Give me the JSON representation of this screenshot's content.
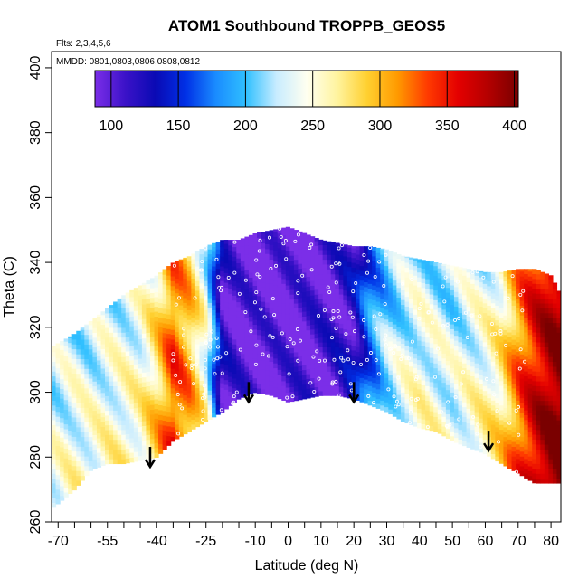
{
  "chart_data": {
    "type": "heatmap",
    "title": "ATOM1 Southbound TROPPB_GEOS5",
    "flights_note": "Flts: 2,3,4,5,6",
    "dates_note": "MMDD: 0801,0803,0806,0808,0812",
    "xlabel": "Latitude (deg N)",
    "ylabel": "Theta (C)",
    "xlim": [
      -72,
      83
    ],
    "ylim": [
      260,
      405
    ],
    "x_ticks": [
      -70,
      -55,
      -40,
      -25,
      -10,
      0,
      10,
      20,
      30,
      40,
      50,
      60,
      70,
      80
    ],
    "x_tick_labels": [
      "-70",
      "-55",
      "-40",
      "-25",
      "-10",
      "0",
      "10",
      "20",
      "30",
      "40",
      "50",
      "60",
      "70",
      "80"
    ],
    "y_ticks": [
      260,
      280,
      300,
      320,
      340,
      360,
      380,
      400
    ],
    "y_tick_labels": [
      "260",
      "280",
      "300",
      "320",
      "340",
      "360",
      "380",
      "400"
    ],
    "colorbar": {
      "min": 88,
      "max": 403,
      "ticks": [
        100,
        150,
        200,
        250,
        300,
        350,
        400
      ],
      "tick_labels": [
        "100",
        "150",
        "200",
        "250",
        "300",
        "350",
        "400"
      ],
      "colors": [
        "#7b2ee8",
        "#3b12c8",
        "#0a0ab4",
        "#0030e6",
        "#1a8cff",
        "#30c0ff",
        "#c8ecff",
        "#fffff0",
        "#fff4a0",
        "#ffd030",
        "#ff9a00",
        "#ff3a00",
        "#e40000",
        "#b40000",
        "#7a0000"
      ]
    },
    "field": {
      "lat_grid": [
        -72,
        -65,
        -60,
        -55,
        -50,
        -45,
        -40,
        -35,
        -30,
        -25,
        -20,
        -15,
        -10,
        -5,
        0,
        5,
        10,
        15,
        20,
        25,
        30,
        35,
        40,
        45,
        50,
        55,
        60,
        65,
        70,
        75,
        80,
        83
      ],
      "tropopause_pressure_hPa": [
        235,
        240,
        238,
        242,
        245,
        250,
        280,
        330,
        300,
        240,
        110,
        95,
        92,
        90,
        92,
        95,
        100,
        105,
        120,
        175,
        210,
        230,
        240,
        235,
        230,
        240,
        250,
        270,
        320,
        360,
        390,
        400
      ],
      "theta_bottom": [
        264,
        270,
        276,
        278,
        278,
        279,
        280,
        285,
        288,
        291,
        294,
        298,
        300,
        299,
        297,
        298,
        299,
        299,
        298,
        296,
        294,
        291,
        289,
        288,
        285,
        283,
        281,
        278,
        275,
        272,
        272,
        272
      ],
      "theta_top": [
        314,
        318,
        322,
        326,
        330,
        333,
        336,
        340,
        342,
        345,
        347,
        347,
        349,
        350,
        351,
        349,
        347,
        346,
        345,
        345,
        344,
        342,
        341,
        340,
        339,
        338,
        337,
        337,
        338,
        338,
        336,
        330
      ]
    },
    "arrows_lat": [
      -42,
      -12,
      20,
      61
    ],
    "arrow_tips_theta": [
      277,
      297,
      297,
      282
    ]
  }
}
